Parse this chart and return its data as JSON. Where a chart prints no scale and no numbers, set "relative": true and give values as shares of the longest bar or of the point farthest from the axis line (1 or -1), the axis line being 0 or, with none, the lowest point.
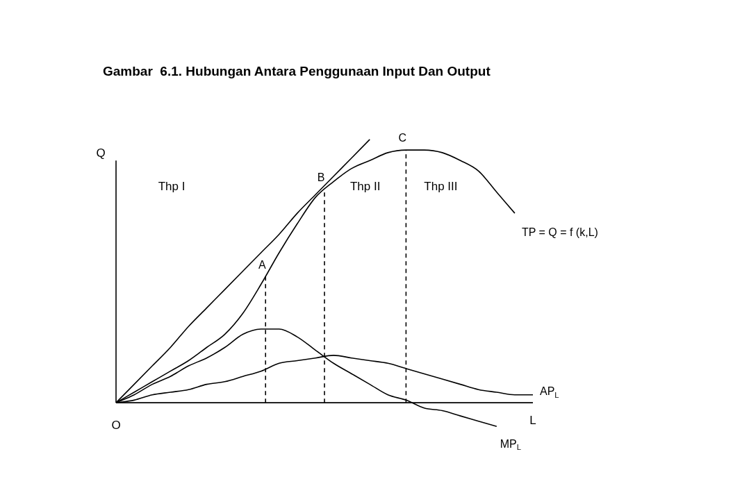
{
  "chart_data": {
    "type": "line",
    "relative": true,
    "title": "Gambar  6.1. Hubungan Antara Penggunaan Input Dan Output",
    "xlabel": "L",
    "ylabel": "Q",
    "marker": "none",
    "line_style": "solid",
    "legend": false,
    "categories": [
      null,
      null,
      null,
      null,
      null,
      null,
      null,
      null,
      null,
      null,
      null,
      null,
      null,
      null,
      null,
      null,
      null,
      null,
      null,
      null,
      null,
      null,
      null,
      null
    ],
    "series": [
      {
        "name": "TP = Q = f (k,L)",
        "color": "#000000",
        "values": [
          0,
          0.04,
          0.08,
          0.12,
          0.16,
          0.21,
          0.26,
          0.34,
          0.45,
          0.57,
          0.68,
          0.78,
          0.84,
          0.89,
          0.92,
          0.95,
          0.96,
          0.96,
          0.95,
          0.92,
          0.88,
          0.8,
          0.72,
          null
        ]
      },
      {
        "color": "#000000",
        "values": [
          0,
          0.07,
          0.14,
          0.21,
          0.29,
          0.36,
          0.43,
          0.5,
          0.57,
          0.64,
          0.72,
          0.79,
          0.86,
          0.93,
          1.0,
          null,
          null,
          null,
          null,
          null,
          null,
          null,
          null,
          null
        ]
      },
      {
        "name": "MP$_{L}$",
        "color": "#000000",
        "values": [
          0,
          0.03,
          0.07,
          0.1,
          0.14,
          0.17,
          0.21,
          0.26,
          0.28,
          0.28,
          0.25,
          0.2,
          0.15,
          0.11,
          0.07,
          0.03,
          0.01,
          -0.02,
          -0.03,
          -0.05,
          -0.07,
          -0.09,
          null,
          null
        ]
      },
      {
        "name": "AP$_{L}$",
        "color": "#000000",
        "values": [
          0,
          0.01,
          0.03,
          0.04,
          0.05,
          0.07,
          0.08,
          0.1,
          0.12,
          0.15,
          0.16,
          0.17,
          0.18,
          0.17,
          0.16,
          0.15,
          0.13,
          0.11,
          0.09,
          0.07,
          0.05,
          0.04,
          0.03,
          0.03
        ]
      }
    ],
    "annotations": [
      "O",
      "Thp I",
      "Thp II",
      "Thp III",
      {
        "text": "A",
        "y": 0.48
      },
      {
        "text": "B",
        "y": 0.81
      },
      {
        "text": "C",
        "y": 0.96
      }
    ]
  }
}
